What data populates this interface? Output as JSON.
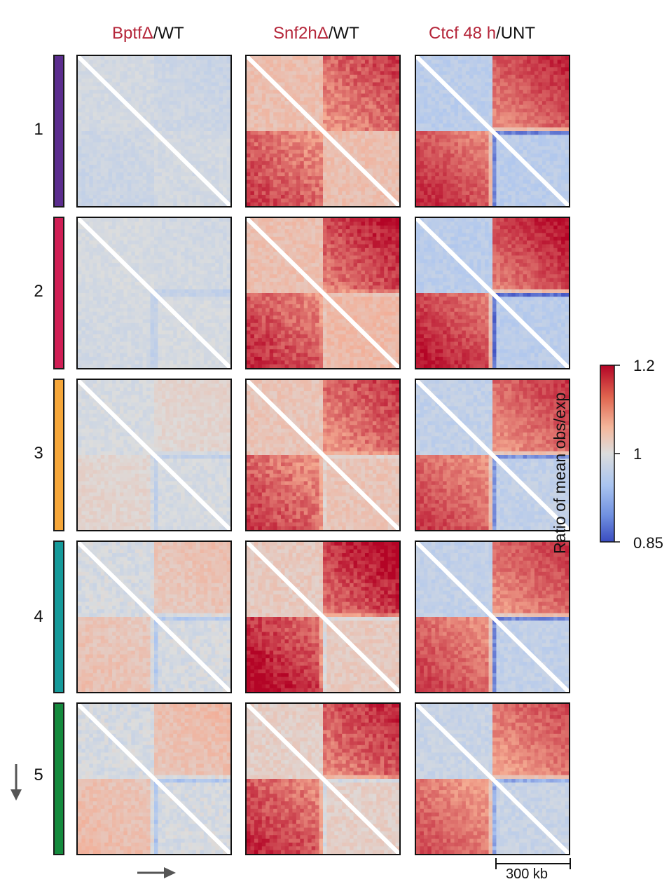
{
  "columns": [
    {
      "red_part": "BptfΔ",
      "rest_part": "/WT"
    },
    {
      "red_part": "Snf2hΔ",
      "rest_part": "/WT"
    },
    {
      "red_part": "Ctcf 48 h",
      "rest_part": "/UNT"
    }
  ],
  "rows": [
    {
      "label": "1",
      "color": "#5b2d8e"
    },
    {
      "label": "2",
      "color": "#d01f55"
    },
    {
      "label": "3",
      "color": "#f6a73a"
    },
    {
      "label": "4",
      "color": "#159a9a"
    },
    {
      "label": "5",
      "color": "#148a3d"
    }
  ],
  "panels": [
    [
      {
        "tl": 0.985,
        "tr": 0.975,
        "bl": 0.975,
        "br": 0.985,
        "stripe": 0.0,
        "noise": 0.012
      },
      {
        "tl": 1.06,
        "tr": 1.14,
        "bl": 1.14,
        "br": 1.06,
        "stripe": 0.0,
        "noise": 0.02
      },
      {
        "tl": 0.95,
        "tr": 1.15,
        "bl": 1.15,
        "br": 0.95,
        "stripe": 0.1,
        "noise": 0.015
      }
    ],
    [
      {
        "tl": 0.99,
        "tr": 0.985,
        "bl": 0.985,
        "br": 0.99,
        "stripe": 0.04,
        "noise": 0.012
      },
      {
        "tl": 1.06,
        "tr": 1.16,
        "bl": 1.15,
        "br": 1.07,
        "stripe": 0.03,
        "noise": 0.02
      },
      {
        "tl": 0.95,
        "tr": 1.16,
        "bl": 1.16,
        "br": 0.95,
        "stripe": 0.12,
        "noise": 0.015
      }
    ],
    [
      {
        "tl": 0.99,
        "tr": 1.02,
        "bl": 1.02,
        "br": 0.99,
        "stripe": 0.05,
        "noise": 0.015
      },
      {
        "tl": 1.05,
        "tr": 1.14,
        "bl": 1.14,
        "br": 1.05,
        "stripe": 0.04,
        "noise": 0.02
      },
      {
        "tl": 0.96,
        "tr": 1.14,
        "bl": 1.14,
        "br": 0.96,
        "stripe": 0.1,
        "noise": 0.015
      }
    ],
    [
      {
        "tl": 0.99,
        "tr": 1.05,
        "bl": 1.05,
        "br": 0.99,
        "stripe": 0.07,
        "noise": 0.02
      },
      {
        "tl": 1.04,
        "tr": 1.17,
        "bl": 1.17,
        "br": 1.04,
        "stripe": 0.06,
        "noise": 0.02
      },
      {
        "tl": 0.96,
        "tr": 1.14,
        "bl": 1.14,
        "br": 0.96,
        "stripe": 0.11,
        "noise": 0.015
      }
    ],
    [
      {
        "tl": 0.99,
        "tr": 1.06,
        "bl": 1.06,
        "br": 0.99,
        "stripe": 0.08,
        "noise": 0.02
      },
      {
        "tl": 1.03,
        "tr": 1.15,
        "bl": 1.15,
        "br": 1.03,
        "stripe": 0.06,
        "noise": 0.02
      },
      {
        "tl": 0.97,
        "tr": 1.13,
        "bl": 1.13,
        "br": 0.97,
        "stripe": 0.09,
        "noise": 0.015
      }
    ]
  ],
  "colorbar": {
    "title": "Ratio of mean obs/exp",
    "max_label": "1.2",
    "mid_label": "1",
    "min_label": "0.85",
    "min": 0.85,
    "mid": 1.0,
    "max": 1.2,
    "colors": {
      "low": "#3a4cc0",
      "mid": "#dcdddd",
      "high": "#b40426"
    }
  },
  "scale_bar": {
    "label": "300 kb"
  }
}
